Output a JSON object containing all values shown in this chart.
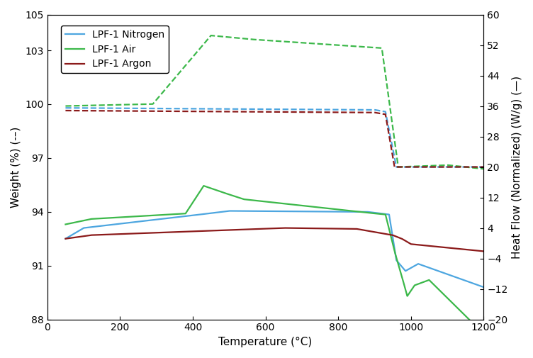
{
  "xlabel": "Temperature (°C)",
  "ylabel_left": "Weight (%) (-–)",
  "ylabel_right": "Heat Flow (Normalized) (W/g) (—)",
  "xlim": [
    0,
    1200
  ],
  "ylim_left": [
    88,
    105
  ],
  "ylim_right": [
    -20,
    60
  ],
  "xticks": [
    0,
    200,
    400,
    600,
    800,
    1000,
    1200
  ],
  "yticks_left": [
    88,
    91,
    94,
    97,
    100,
    103,
    105
  ],
  "yticks_right": [
    -20,
    -12,
    -4,
    4,
    12,
    20,
    28,
    36,
    44,
    52,
    60
  ],
  "colors": {
    "nitrogen": "#4DA6E0",
    "air": "#3CB84A",
    "argon": "#8B1A1A"
  },
  "legend": [
    {
      "label": "LPF-1 Nitrogen",
      "color": "#4DA6E0"
    },
    {
      "label": "LPF-1 Air",
      "color": "#3CB84A"
    },
    {
      "label": "LPF-1 Argon",
      "color": "#8B1A1A"
    }
  ]
}
